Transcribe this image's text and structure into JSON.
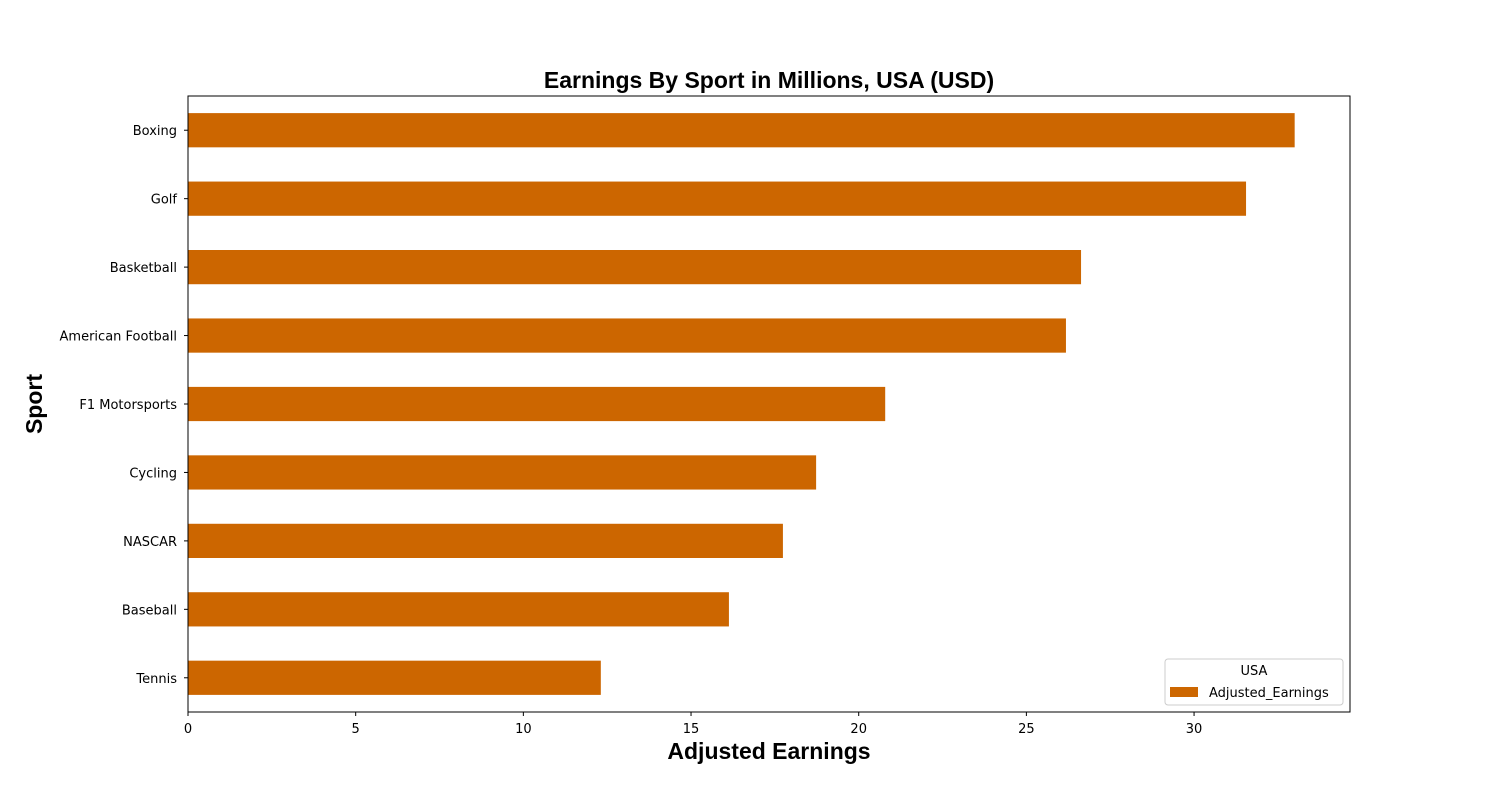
{
  "chart_data": {
    "type": "bar",
    "orientation": "horizontal",
    "title": "Earnings By Sport in Millions, USA (USD)",
    "xlabel": "Adjusted Earnings",
    "ylabel": "Sport",
    "categories": [
      "Boxing",
      "Golf",
      "Basketball",
      "American Football",
      "F1 Motorsports",
      "Cycling",
      "NASCAR",
      "Baseball",
      "Tennis"
    ],
    "series": [
      {
        "name": "Adjusted_Earnings",
        "values": [
          33.0,
          31.55,
          26.63,
          26.18,
          20.79,
          18.73,
          17.74,
          16.13,
          12.31
        ]
      }
    ],
    "xlim": [
      0,
      34.65
    ],
    "xticks": [
      0,
      5,
      10,
      15,
      20,
      25,
      30
    ],
    "xtick_labels": [
      "0",
      "5",
      "10",
      "15",
      "20",
      "25",
      "30"
    ],
    "legend": {
      "title": "USA",
      "position": "lower-right"
    },
    "colors": {
      "bar": "#cc6600",
      "axis": "#000000"
    },
    "grid": false
  }
}
